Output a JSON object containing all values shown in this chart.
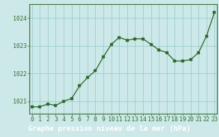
{
  "x": [
    0,
    1,
    2,
    3,
    4,
    5,
    6,
    7,
    8,
    9,
    10,
    11,
    12,
    13,
    14,
    15,
    16,
    17,
    18,
    19,
    20,
    21,
    22,
    23
  ],
  "y": [
    1020.8,
    1020.8,
    1020.9,
    1020.85,
    1021.0,
    1021.1,
    1021.55,
    1021.85,
    1022.1,
    1022.6,
    1023.05,
    1023.3,
    1023.2,
    1023.25,
    1023.25,
    1023.05,
    1022.85,
    1022.75,
    1022.45,
    1022.45,
    1022.5,
    1022.75,
    1023.35,
    1024.2
  ],
  "line_color": "#2d6a2d",
  "marker": "s",
  "markersize": 2.5,
  "linewidth": 1.0,
  "bg_color": "#cce8e8",
  "plot_bg_color": "#cce8e8",
  "grid_color": "#99cccc",
  "xlabel": "Graphe pression niveau de la mer (hPa)",
  "xlabel_fontsize": 7.5,
  "xlabel_color": "#ffffff",
  "xlabel_bg": "#2d6a2d",
  "ytick_labels": [
    "1021",
    "1022",
    "1023",
    "1024"
  ],
  "yticks": [
    1021,
    1022,
    1023,
    1024
  ],
  "xticks": [
    0,
    1,
    2,
    3,
    4,
    5,
    6,
    7,
    8,
    9,
    10,
    11,
    12,
    13,
    14,
    15,
    16,
    17,
    18,
    19,
    20,
    21,
    22,
    23
  ],
  "ylim": [
    1020.55,
    1024.5
  ],
  "xlim": [
    -0.3,
    23.3
  ],
  "tick_fontsize": 6,
  "tick_color": "#2d6a2d",
  "spine_color": "#2d6a2d"
}
